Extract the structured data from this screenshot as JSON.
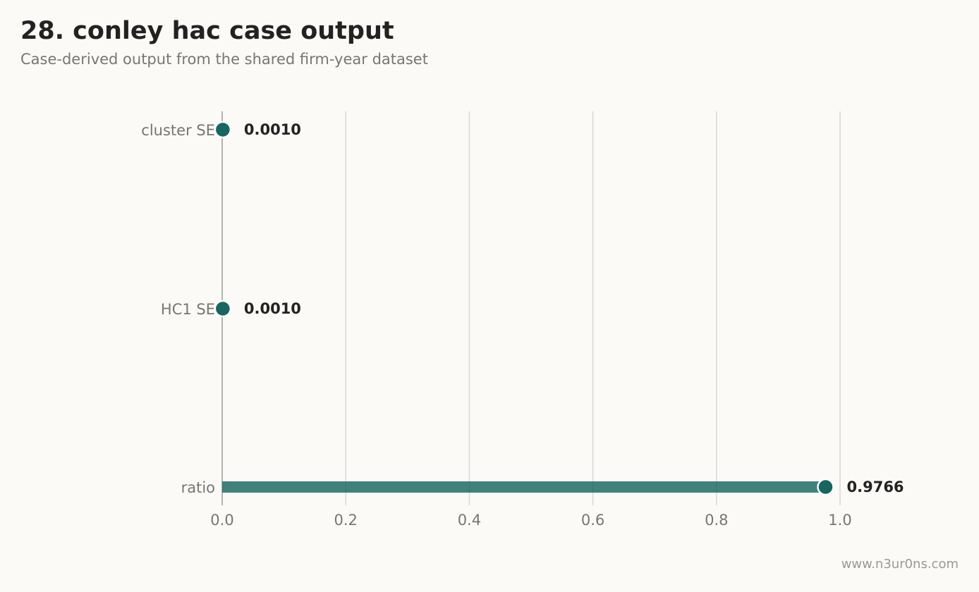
{
  "header": {
    "title": "28. conley hac case output",
    "subtitle": "Case-derived output from the shared firm-year dataset"
  },
  "footer": {
    "watermark": "www.n3ur0ns.com"
  },
  "colors": {
    "accent": "#17665f",
    "grid": "#d9d8d4",
    "axis": "#999999",
    "label": "#777672",
    "value_text": "#222222"
  },
  "chart_data": {
    "type": "bar",
    "orientation": "horizontal",
    "style": "lollipop",
    "categories": [
      "cluster SE",
      "HC1 SE",
      "ratio"
    ],
    "values": [
      0.001,
      0.001,
      0.9766
    ],
    "value_labels": [
      "0.0010",
      "0.0010",
      "0.9766"
    ],
    "xlim": [
      0,
      1.0
    ],
    "x_ticks": [
      0.0,
      0.2,
      0.4,
      0.6,
      0.8,
      1.0
    ],
    "x_tick_labels": [
      "0.0",
      "0.2",
      "0.4",
      "0.6",
      "0.8",
      "1.0"
    ],
    "grid": true
  }
}
